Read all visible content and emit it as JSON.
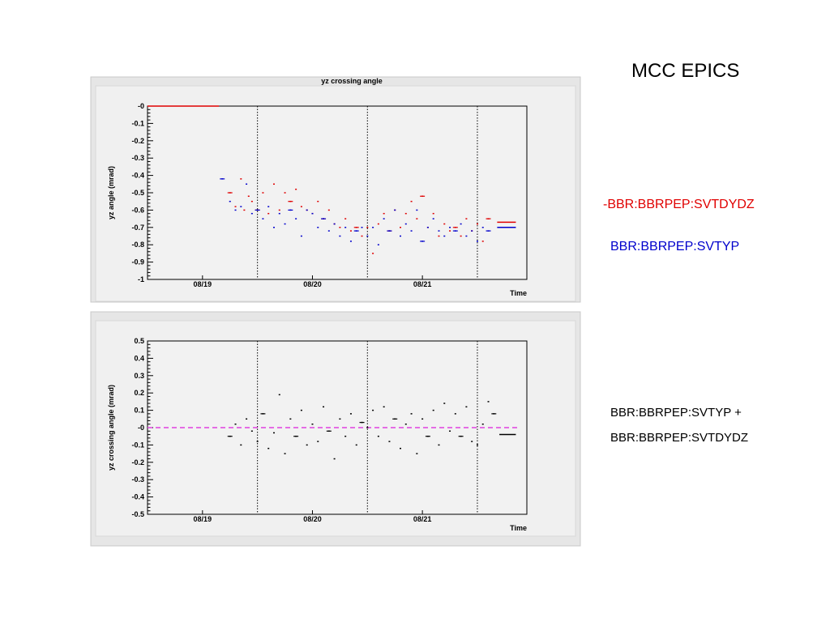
{
  "page": {
    "title": "MCC EPICS",
    "legend": {
      "red_label": "-BBR:BBRPEP:SVTDYDZ",
      "blue_label": "BBR:BBRPEP:SVTYP",
      "red_color": "#e00000",
      "blue_color": "#0000cc"
    },
    "sum_label_line1": "BBR:BBRPEP:SVTYP +",
    "sum_label_line2": "BBR:BBRPEP:SVTDYDZ"
  },
  "chart_data": [
    {
      "type": "scatter",
      "title": "yz crossing angle",
      "xlabel": "Time",
      "ylabel": "yz angle (mrad)",
      "ylim": [
        -1,
        0
      ],
      "xlim": [
        0,
        3.45
      ],
      "x_ticks": [
        {
          "x": 0.5,
          "label": "08/19"
        },
        {
          "x": 1.5,
          "label": "08/20"
        },
        {
          "x": 2.5,
          "label": "08/21"
        }
      ],
      "y_ticks": [
        "-0",
        "-0.1",
        "-0.2",
        "-0.3",
        "-0.4",
        "-0.5",
        "-0.6",
        "-0.7",
        "-0.8",
        "-0.9",
        "-1"
      ],
      "day_dividers": [
        1.0,
        2.0,
        3.0
      ],
      "series": [
        {
          "color": "#e00000",
          "segments": [
            [
              [
                0.0,
                0.0
              ],
              [
                0.65,
                0.0
              ]
            ],
            [
              [
                3.18,
                -0.67
              ],
              [
                3.35,
                -0.67
              ]
            ]
          ],
          "x": [
            0.75,
            0.8,
            0.85,
            0.88,
            0.92,
            0.95,
            1.0,
            1.05,
            1.1,
            1.15,
            1.2,
            1.25,
            1.3,
            1.35,
            1.4,
            1.45,
            1.5,
            1.55,
            1.6,
            1.65,
            1.7,
            1.75,
            1.8,
            1.85,
            1.9,
            1.95,
            2.0,
            2.05,
            2.1,
            2.15,
            2.2,
            2.25,
            2.3,
            2.35,
            2.4,
            2.45,
            2.5,
            2.55,
            2.6,
            2.65,
            2.7,
            2.75,
            2.8,
            2.85,
            2.9,
            2.95,
            3.0,
            3.05,
            3.1
          ],
          "y": [
            -0.5,
            -0.58,
            -0.42,
            -0.6,
            -0.52,
            -0.55,
            -0.6,
            -0.5,
            -0.62,
            -0.45,
            -0.6,
            -0.5,
            -0.55,
            -0.48,
            -0.58,
            -0.6,
            -0.62,
            -0.55,
            -0.65,
            -0.6,
            -0.68,
            -0.7,
            -0.65,
            -0.72,
            -0.7,
            -0.75,
            -0.7,
            -0.85,
            -0.68,
            -0.62,
            -0.72,
            -0.6,
            -0.7,
            -0.62,
            -0.55,
            -0.65,
            -0.52,
            -0.7,
            -0.62,
            -0.75,
            -0.68,
            -0.72,
            -0.7,
            -0.75,
            -0.65,
            -0.72,
            -0.68,
            -0.78,
            -0.65
          ]
        },
        {
          "color": "#0000cc",
          "segments": [
            [
              [
                3.18,
                -0.7
              ],
              [
                3.35,
                -0.7
              ]
            ]
          ],
          "x": [
            0.68,
            0.75,
            0.8,
            0.85,
            0.9,
            0.95,
            1.0,
            1.05,
            1.1,
            1.15,
            1.2,
            1.25,
            1.3,
            1.35,
            1.4,
            1.45,
            1.5,
            1.55,
            1.6,
            1.65,
            1.7,
            1.75,
            1.8,
            1.85,
            1.9,
            1.95,
            2.0,
            2.05,
            2.1,
            2.15,
            2.2,
            2.25,
            2.3,
            2.35,
            2.4,
            2.45,
            2.5,
            2.55,
            2.6,
            2.65,
            2.7,
            2.75,
            2.8,
            2.85,
            2.9,
            2.95,
            3.0,
            3.05,
            3.1
          ],
          "y": [
            -0.42,
            -0.55,
            -0.6,
            -0.58,
            -0.45,
            -0.62,
            -0.6,
            -0.65,
            -0.58,
            -0.7,
            -0.62,
            -0.68,
            -0.6,
            -0.65,
            -0.75,
            -0.6,
            -0.62,
            -0.7,
            -0.65,
            -0.72,
            -0.68,
            -0.75,
            -0.7,
            -0.78,
            -0.72,
            -0.7,
            -0.75,
            -0.7,
            -0.8,
            -0.65,
            -0.72,
            -0.6,
            -0.75,
            -0.68,
            -0.72,
            -0.6,
            -0.78,
            -0.7,
            -0.65,
            -0.72,
            -0.75,
            -0.7,
            -0.72,
            -0.68,
            -0.75,
            -0.72,
            -0.78,
            -0.7,
            -0.72
          ]
        }
      ]
    },
    {
      "type": "scatter",
      "title": "",
      "xlabel": "Time",
      "ylabel": "yz crossing angle (mrad)",
      "ylim": [
        -0.5,
        0.5
      ],
      "xlim": [
        0,
        3.45
      ],
      "x_ticks": [
        {
          "x": 0.5,
          "label": "08/19"
        },
        {
          "x": 1.5,
          "label": "08/20"
        },
        {
          "x": 2.5,
          "label": "08/21"
        }
      ],
      "y_ticks": [
        "0.5",
        "0.4",
        "0.3",
        "0.2",
        "0.1",
        "-0",
        "-0.1",
        "-0.2",
        "-0.3",
        "-0.4",
        "-0.5"
      ],
      "day_dividers": [
        1.0,
        2.0,
        3.0
      ],
      "reference_line": {
        "y": 0.0,
        "color": "#e040e0"
      },
      "series": [
        {
          "color": "#000000",
          "segments": [
            [
              [
                3.2,
                -0.04
              ],
              [
                3.35,
                -0.04
              ]
            ]
          ],
          "x": [
            0.75,
            0.8,
            0.85,
            0.9,
            0.95,
            1.0,
            1.05,
            1.1,
            1.15,
            1.2,
            1.25,
            1.3,
            1.35,
            1.4,
            1.45,
            1.5,
            1.55,
            1.6,
            1.65,
            1.7,
            1.75,
            1.8,
            1.85,
            1.9,
            1.95,
            2.0,
            2.05,
            2.1,
            2.15,
            2.2,
            2.25,
            2.3,
            2.35,
            2.4,
            2.45,
            2.5,
            2.55,
            2.6,
            2.65,
            2.7,
            2.75,
            2.8,
            2.85,
            2.9,
            2.95,
            3.0,
            3.05,
            3.1,
            3.15
          ],
          "y": [
            -0.05,
            0.02,
            -0.1,
            0.05,
            -0.02,
            -0.08,
            0.08,
            -0.12,
            -0.03,
            0.19,
            -0.15,
            0.05,
            -0.05,
            0.1,
            -0.1,
            0.02,
            -0.08,
            0.12,
            -0.02,
            -0.18,
            0.05,
            -0.05,
            0.08,
            -0.1,
            0.03,
            0.0,
            0.1,
            -0.05,
            0.12,
            -0.08,
            0.05,
            -0.12,
            0.02,
            0.08,
            -0.15,
            0.05,
            -0.05,
            0.1,
            -0.1,
            0.14,
            -0.02,
            0.08,
            -0.05,
            0.12,
            -0.08,
            -0.1,
            0.02,
            0.15,
            0.08
          ]
        }
      ]
    }
  ]
}
